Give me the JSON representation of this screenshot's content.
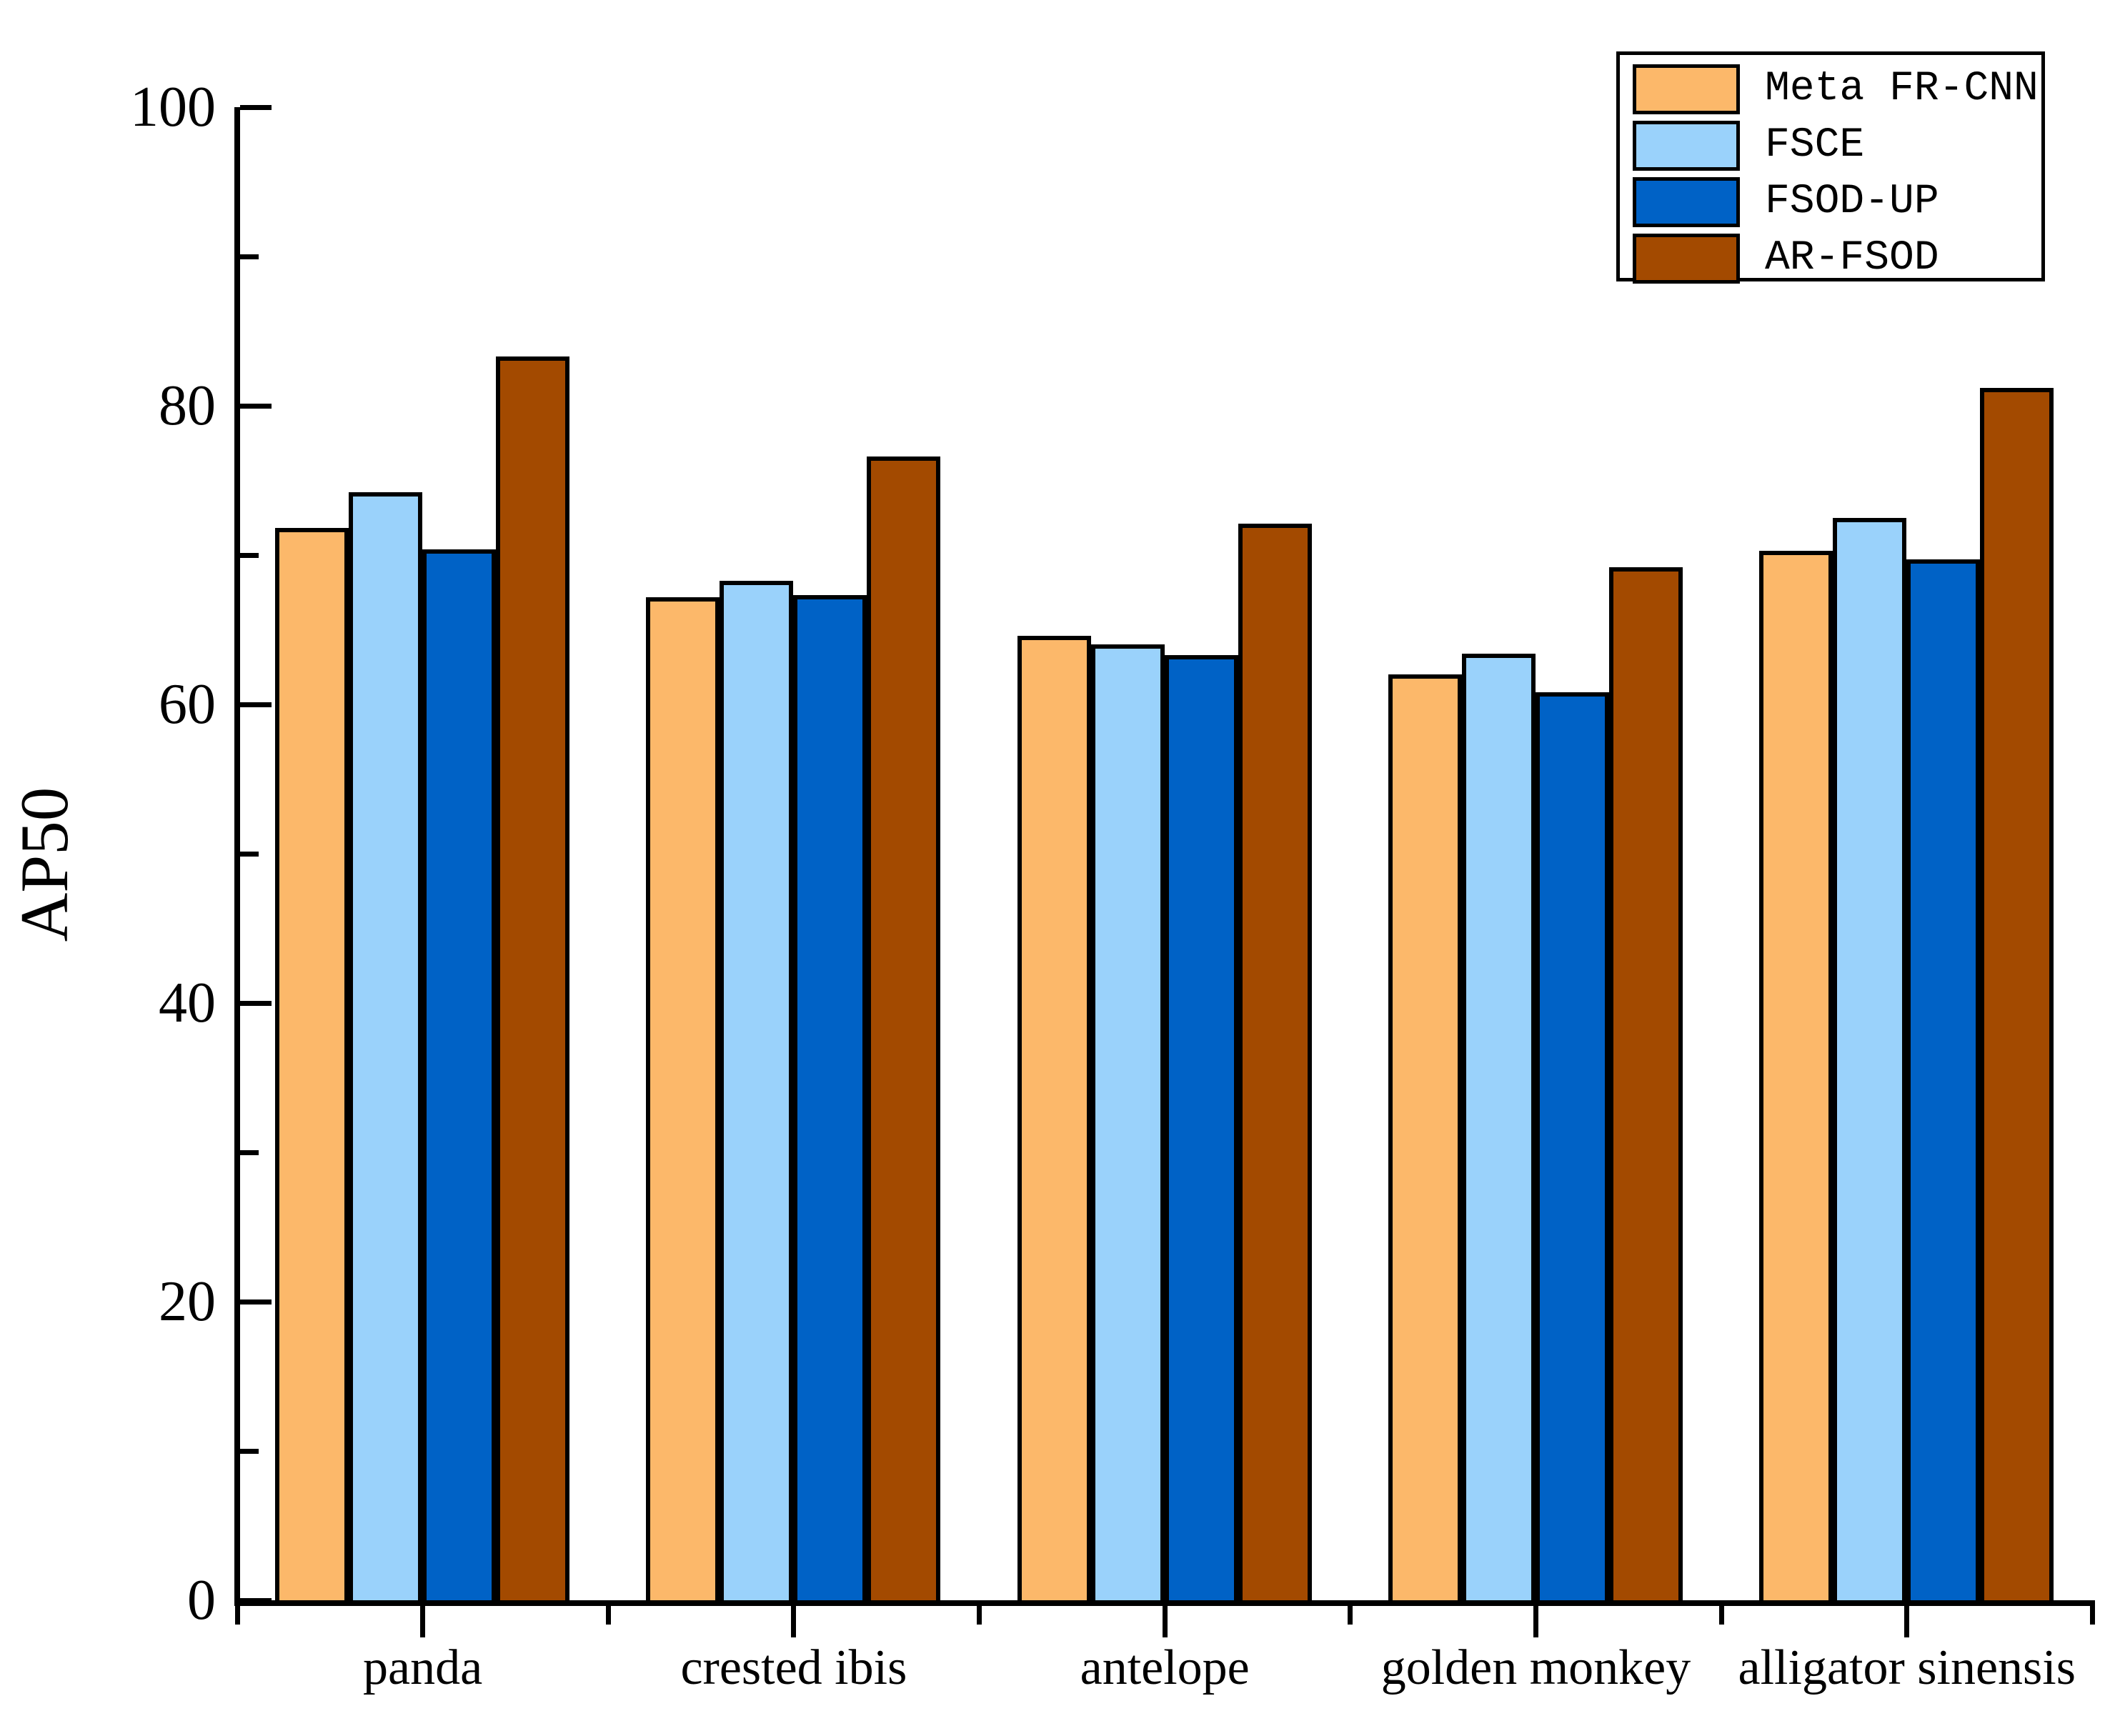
{
  "chart_data": {
    "type": "bar",
    "title": "",
    "xlabel": "",
    "ylabel": "AP50",
    "ylim": [
      0,
      100
    ],
    "y_axis": {
      "major_tick_values": [
        0,
        20,
        40,
        60,
        80,
        100
      ],
      "major_tick_labels": [
        "0",
        "20",
        "40",
        "60",
        "80",
        "100"
      ],
      "minor_tick_values": [
        10,
        30,
        50,
        70,
        90
      ]
    },
    "grid": "off",
    "legend_position": "top-right",
    "categories": [
      "panda",
      "crested ibis",
      "antelope",
      "golden monkey",
      "alligator sinensis"
    ],
    "series": [
      {
        "name": "Meta FR-CNN",
        "color": "#FCB86A",
        "values": [
          71.8,
          67.2,
          64.6,
          62.0,
          70.3
        ]
      },
      {
        "name": "FSCE",
        "color": "#9AD2FB",
        "values": [
          74.2,
          68.3,
          64.0,
          63.4,
          72.5
        ]
      },
      {
        "name": "FSOD-UP",
        "color": "#0062C6",
        "values": [
          70.4,
          67.3,
          63.3,
          60.8,
          69.7
        ]
      },
      {
        "name": "AR-FSOD",
        "color": "#A34A00",
        "values": [
          83.3,
          76.6,
          72.1,
          69.2,
          81.2
        ]
      }
    ],
    "bar_border_color": "#000000",
    "axis_color": "#000000"
  }
}
